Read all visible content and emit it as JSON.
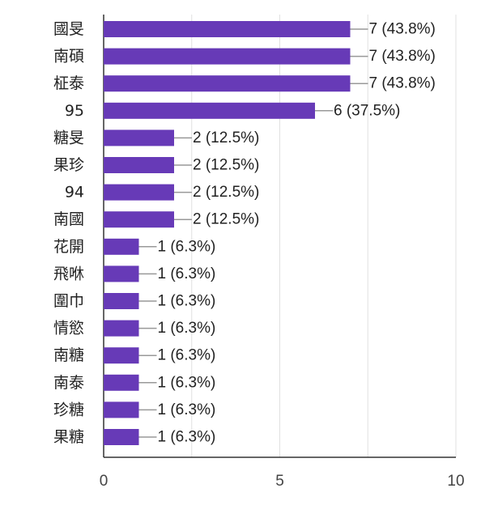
{
  "chart_data": {
    "type": "bar",
    "orientation": "horizontal",
    "title": "",
    "xlabel": "",
    "ylabel": "",
    "categories": [
      "國旻",
      "南碩",
      "柾泰",
      "95",
      "糖旻",
      "果珍",
      "94",
      "南國",
      "花開",
      "飛咻",
      "圍巾",
      "情慾",
      "南糖",
      "南泰",
      "珍糖",
      "果糖"
    ],
    "values": [
      7,
      7,
      7,
      6,
      2,
      2,
      2,
      2,
      1,
      1,
      1,
      1,
      1,
      1,
      1,
      1
    ],
    "data_labels": [
      "7 (43.8%)",
      "7 (43.8%)",
      "7 (43.8%)",
      "6 (37.5%)",
      "2 (12.5%)",
      "2 (12.5%)",
      "2 (12.5%)",
      "2 (12.5%)",
      "1 (6.3%)",
      "1 (6.3%)",
      "1 (6.3%)",
      "1 (6.3%)",
      "1 (6.3%)",
      "1 (6.3%)",
      "1 (6.3%)",
      "1 (6.3%)"
    ],
    "xlim": [
      0,
      10
    ],
    "x_ticks": [
      0,
      5,
      10
    ],
    "x_tick_labels": [
      "0",
      "5",
      "10"
    ],
    "grid": true,
    "legend": "none",
    "bar_color": "#673ab7",
    "grid_color": "#e0e0e0",
    "axis_color": "#333333",
    "leader_color": "#999999"
  }
}
